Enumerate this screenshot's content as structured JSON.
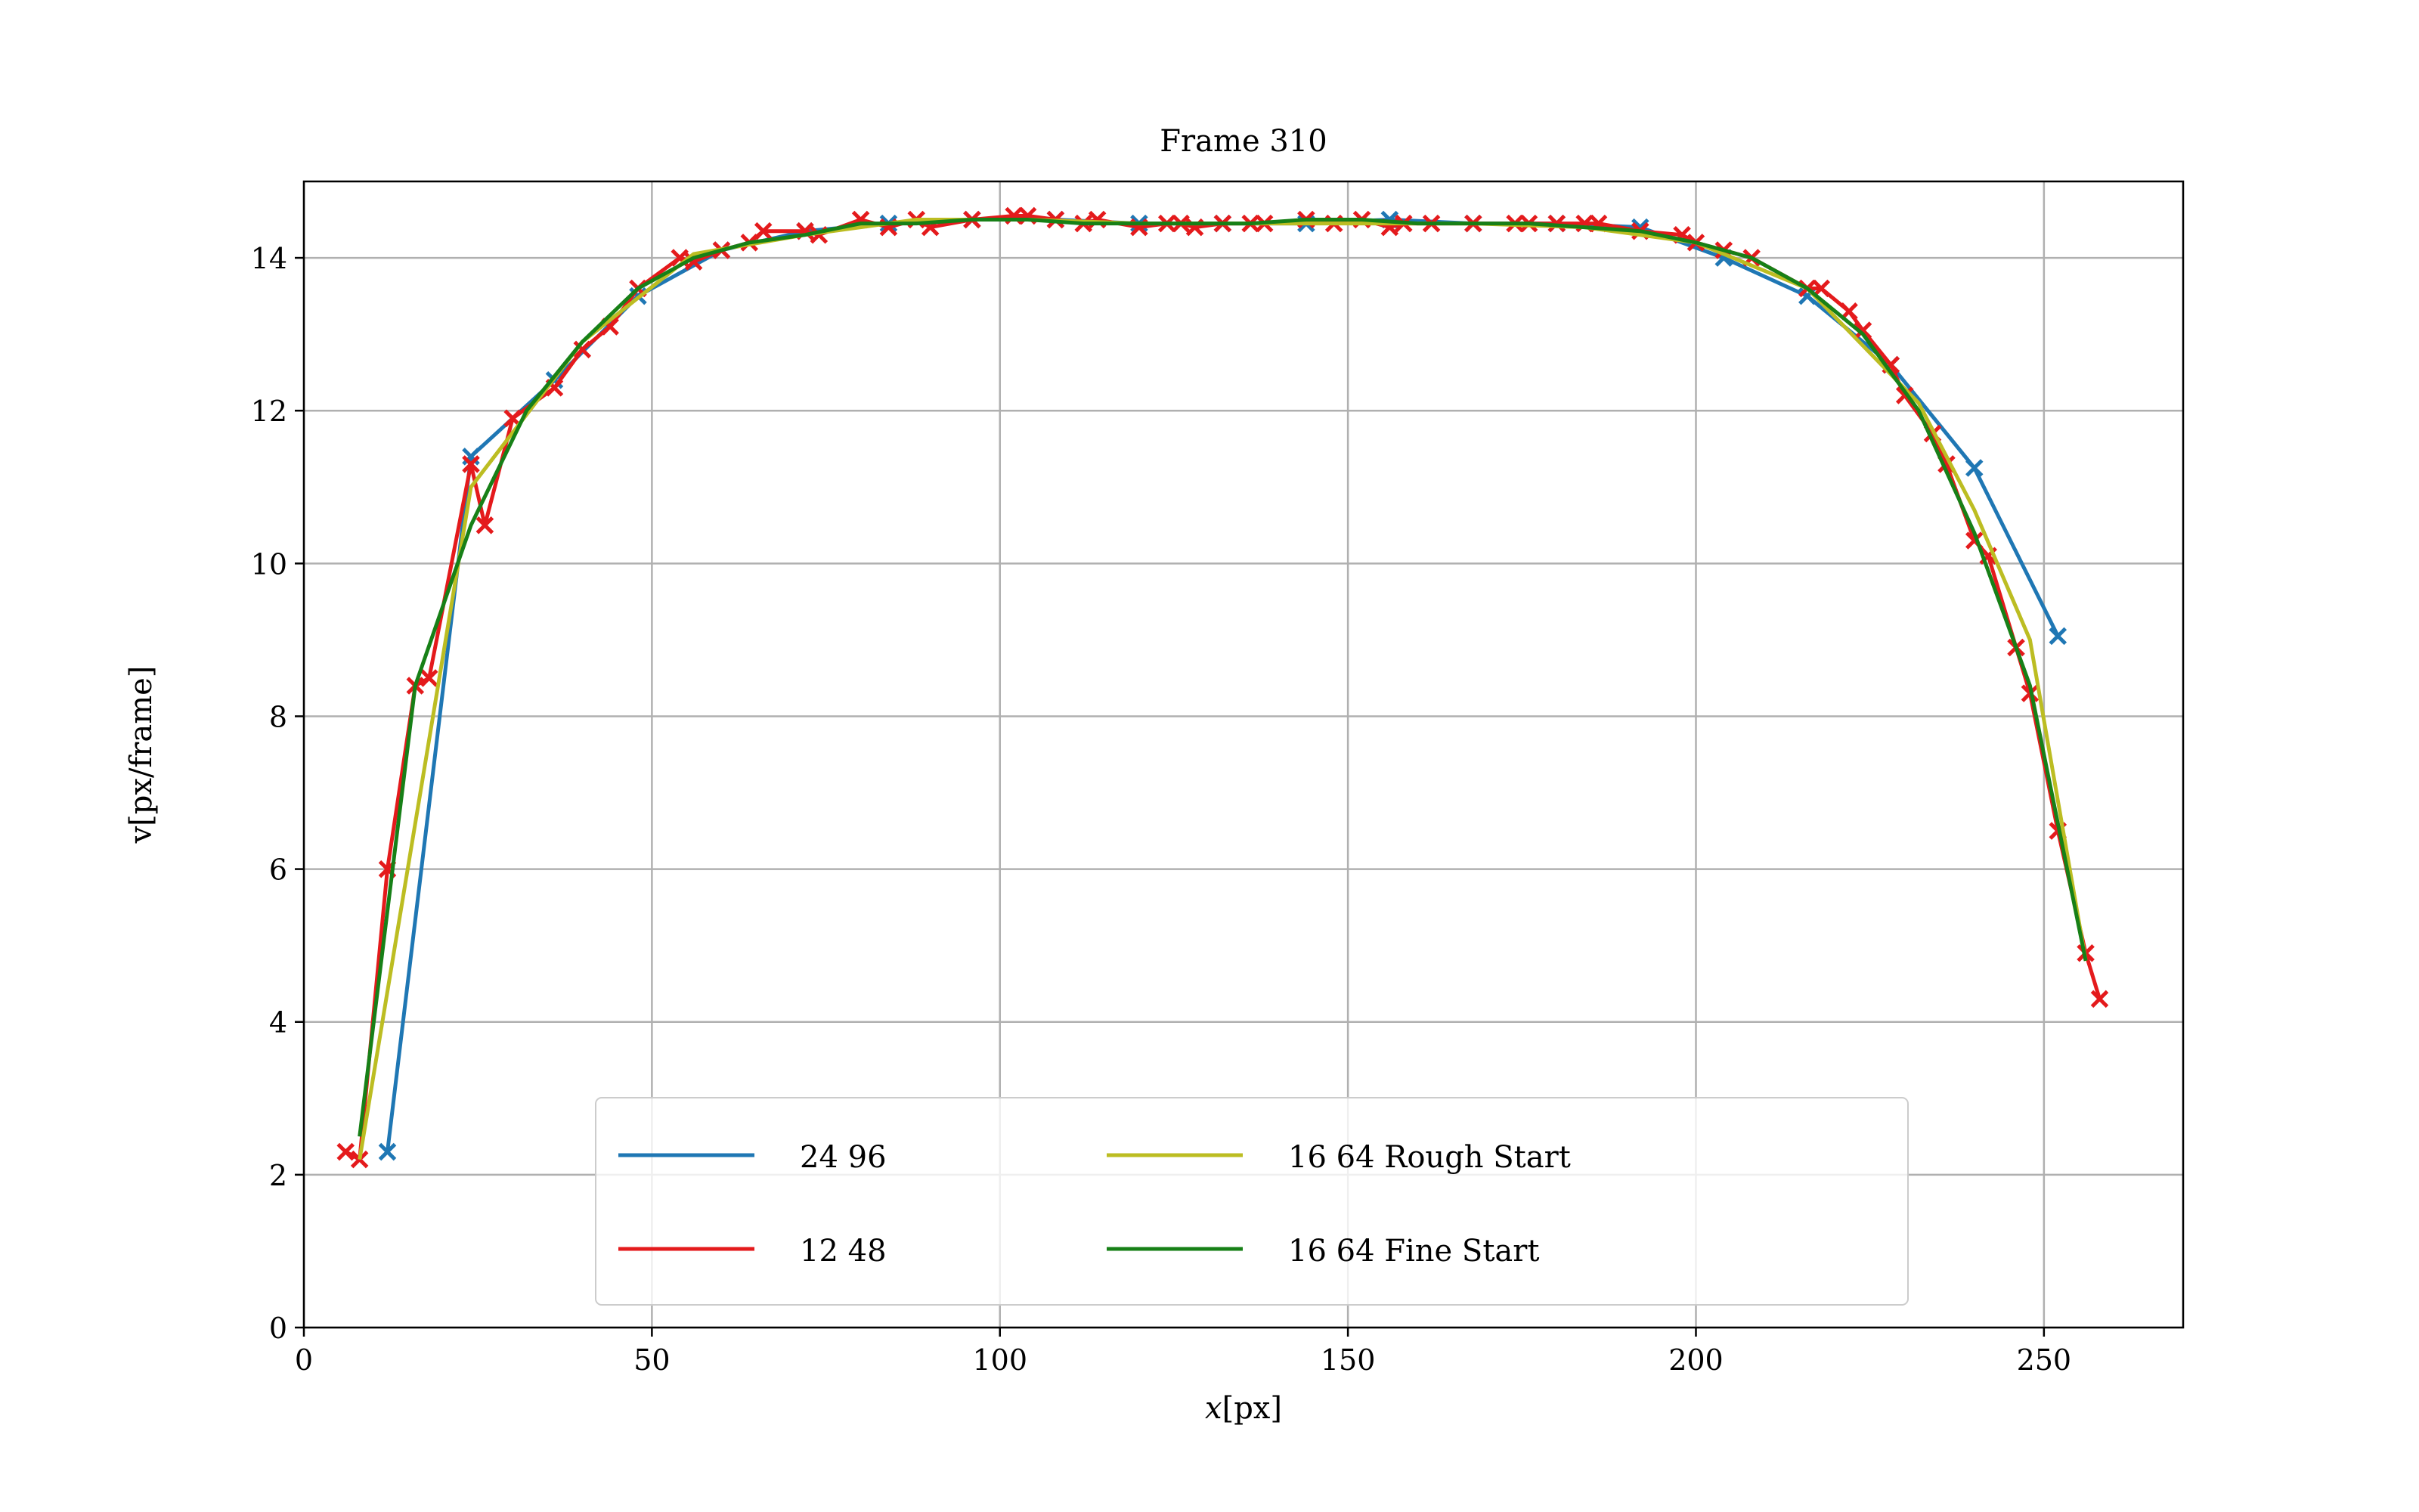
{
  "chart_data": {
    "type": "line",
    "title": "Frame 310",
    "xlabel_var": "x",
    "xlabel_unit": "[px]",
    "ylabel": "v[px/frame]",
    "xlim": [
      0,
      270
    ],
    "ylim": [
      0,
      15
    ],
    "xticks": [
      0,
      50,
      100,
      150,
      200,
      250
    ],
    "yticks": [
      0,
      2,
      4,
      6,
      8,
      10,
      12,
      14
    ],
    "grid": true,
    "legend_position": "lower center",
    "legend_columns": 2,
    "series": [
      {
        "name": "24 96",
        "color": "#1f77b4",
        "marker": "x",
        "x": [
          12,
          24,
          36,
          48,
          60,
          72,
          84,
          96,
          108,
          120,
          132,
          144,
          156,
          168,
          180,
          192,
          204,
          216,
          228,
          240,
          252
        ],
        "y": [
          2.3,
          11.4,
          12.4,
          13.5,
          14.1,
          14.35,
          14.45,
          14.5,
          14.5,
          14.45,
          14.45,
          14.45,
          14.5,
          14.45,
          14.45,
          14.4,
          14.0,
          13.5,
          12.6,
          11.25,
          9.05
        ]
      },
      {
        "name": "12 48",
        "color": "#e41a1c",
        "marker": "x",
        "x": [
          6,
          8,
          12,
          16,
          18,
          24,
          26,
          30,
          36,
          40,
          44,
          48,
          54,
          56,
          60,
          64,
          66,
          72,
          74,
          80,
          84,
          88,
          90,
          96,
          102,
          104,
          108,
          112,
          114,
          120,
          124,
          126,
          128,
          132,
          136,
          138,
          144,
          148,
          152,
          156,
          158,
          162,
          168,
          174,
          176,
          180,
          184,
          186,
          192,
          198,
          200,
          204,
          208,
          216,
          218,
          222,
          224,
          228,
          230,
          234,
          236,
          240,
          242,
          246,
          248,
          252,
          256,
          258
        ],
        "y": [
          2.3,
          2.2,
          6.0,
          8.4,
          8.5,
          11.3,
          10.5,
          11.9,
          12.3,
          12.8,
          13.1,
          13.6,
          14.0,
          13.95,
          14.1,
          14.2,
          14.35,
          14.35,
          14.3,
          14.5,
          14.4,
          14.5,
          14.4,
          14.5,
          14.55,
          14.55,
          14.5,
          14.45,
          14.5,
          14.4,
          14.45,
          14.45,
          14.4,
          14.45,
          14.45,
          14.45,
          14.5,
          14.45,
          14.5,
          14.4,
          14.45,
          14.45,
          14.45,
          14.45,
          14.45,
          14.45,
          14.45,
          14.45,
          14.35,
          14.3,
          14.2,
          14.1,
          14.0,
          13.6,
          13.6,
          13.3,
          13.05,
          12.6,
          12.2,
          11.7,
          11.3,
          10.3,
          10.1,
          8.9,
          8.3,
          6.5,
          4.9,
          4.3
        ]
      },
      {
        "name": "16 64 Rough Start",
        "color": "#bcbd22",
        "marker": "none",
        "x": [
          8,
          24,
          40,
          56,
          72,
          88,
          104,
          120,
          136,
          152,
          168,
          184,
          200,
          216,
          232,
          240,
          248,
          256
        ],
        "y": [
          2.2,
          11.0,
          12.9,
          14.05,
          14.3,
          14.5,
          14.5,
          14.45,
          14.45,
          14.45,
          14.45,
          14.4,
          14.2,
          13.6,
          12.1,
          10.7,
          9.0,
          4.8
        ]
      },
      {
        "name": "16 64 Fine Start",
        "color": "#178017",
        "marker": "none",
        "x": [
          8,
          16,
          24,
          32,
          40,
          48,
          56,
          64,
          72,
          80,
          88,
          96,
          104,
          112,
          120,
          128,
          136,
          144,
          152,
          160,
          168,
          176,
          184,
          192,
          200,
          208,
          216,
          224,
          232,
          240,
          248,
          256
        ],
        "y": [
          2.5,
          8.4,
          10.5,
          12.0,
          12.9,
          13.6,
          14.0,
          14.2,
          14.3,
          14.45,
          14.45,
          14.5,
          14.5,
          14.45,
          14.45,
          14.45,
          14.45,
          14.5,
          14.5,
          14.45,
          14.45,
          14.45,
          14.4,
          14.35,
          14.2,
          14.0,
          13.6,
          13.0,
          12.0,
          10.4,
          8.4,
          4.8
        ]
      }
    ]
  }
}
